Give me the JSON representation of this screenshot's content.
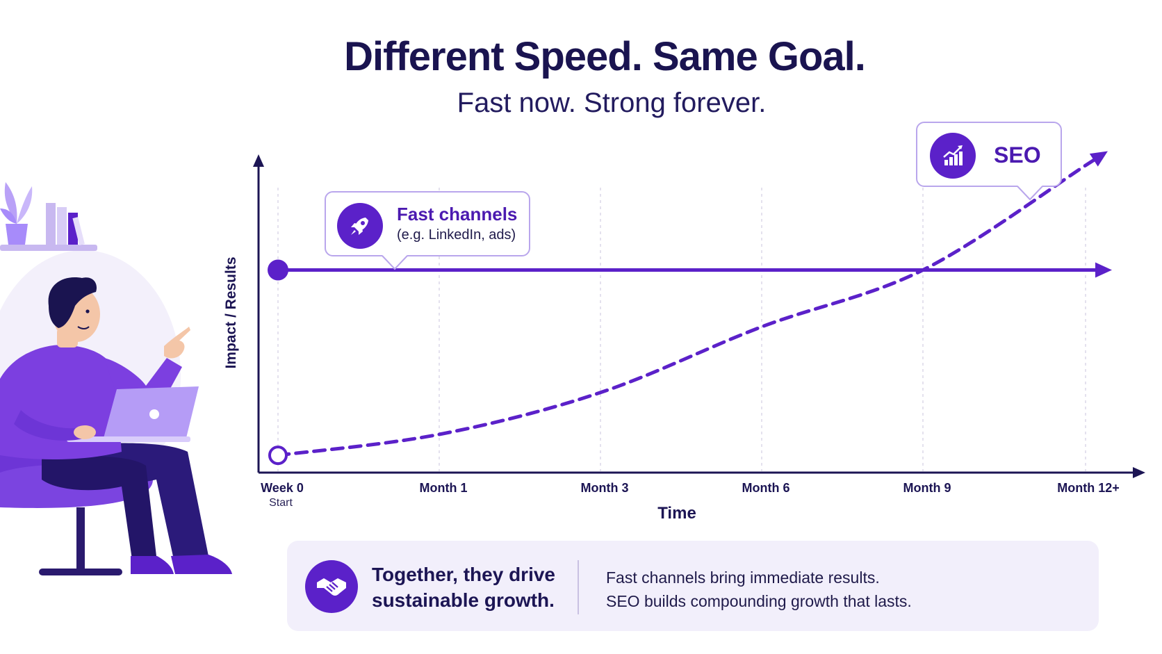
{
  "title": "Different Speed. Same Goal.",
  "subtitle": "Fast now. Strong forever.",
  "colors": {
    "accent": "#5b21c9",
    "navy": "#1c1554",
    "light": "#a78bfa",
    "panel": "#f2effb"
  },
  "chart_data": {
    "type": "line",
    "ylabel": "Impact / Results",
    "xlabel": "Time",
    "categories": [
      "Week 0",
      "Month 1",
      "Month 3",
      "Month 6",
      "Month 9",
      "Month 12+"
    ],
    "category_sublabels": [
      "Start",
      "",
      "",
      "",
      "",
      ""
    ],
    "grid": true,
    "ylim": [
      0,
      100
    ],
    "series": [
      {
        "name": "Fast channels",
        "note": "(e.g. LinkedIn, ads)",
        "style": "solid",
        "icon": "rocket-icon",
        "values": [
          65,
          65,
          65,
          65,
          65,
          65
        ]
      },
      {
        "name": "SEO",
        "style": "dashed",
        "icon": "growth-chart-icon",
        "values": [
          3,
          10,
          24,
          46,
          65,
          100
        ]
      }
    ]
  },
  "banner": {
    "icon": "handshake-icon",
    "headline": "Together, they drive sustainable growth.",
    "line1": "Fast channels bring immediate results.",
    "line2": "SEO builds compounding growth that lasts."
  }
}
